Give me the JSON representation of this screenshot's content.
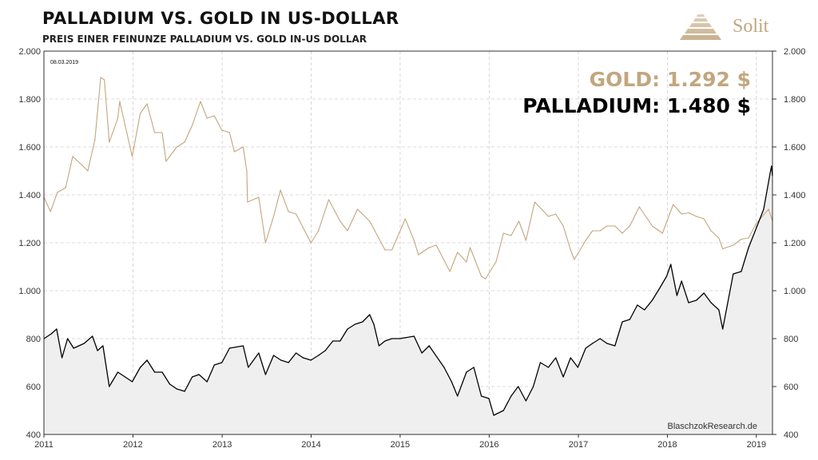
{
  "header": {
    "title": "PALLADIUM  VS.  GOLD  IN  US-DOLLAR",
    "subtitle": "PREIS EINER FEINUNZE PALLADIUM VS. GOLD IN-US DOLLAR",
    "brand": "Solit"
  },
  "colors": {
    "gold": "#c2a67e",
    "palladium": "#000000",
    "palladium_fill": "#efefef",
    "grid": "#cfcfcf"
  },
  "chart_data": {
    "type": "line",
    "date_label": "08.03.2019",
    "source": "BlaschzokResearch.de",
    "value_labels": [
      "GOLD: 1.292 $",
      "PALLADIUM: 1.480 $"
    ],
    "x_tick_labels": [
      "2011",
      "2012",
      "2013",
      "2014",
      "2015",
      "2016",
      "2017",
      "2018",
      "2019"
    ],
    "y_tick_labels": [
      "400",
      "600",
      "800",
      "1.000",
      "1.200",
      "1.400",
      "1.600",
      "1.800",
      "2.000"
    ],
    "ylim": [
      400,
      2000
    ],
    "xlim": [
      "2011-01-01",
      "2019-03-08"
    ],
    "y_axis_both_sides": true,
    "grid": true,
    "series": [
      {
        "name": "GOLD",
        "color": "#c2a67e",
        "points": [
          [
            "2011-01-01",
            1390
          ],
          [
            "2011-01-28",
            1330
          ],
          [
            "2011-02-25",
            1410
          ],
          [
            "2011-03-31",
            1430
          ],
          [
            "2011-04-29",
            1560
          ],
          [
            "2011-05-31",
            1530
          ],
          [
            "2011-06-30",
            1500
          ],
          [
            "2011-07-29",
            1630
          ],
          [
            "2011-08-22",
            1890
          ],
          [
            "2011-09-06",
            1880
          ],
          [
            "2011-09-26",
            1620
          ],
          [
            "2011-10-31",
            1720
          ],
          [
            "2011-11-08",
            1790
          ],
          [
            "2011-12-29",
            1560
          ],
          [
            "2012-01-31",
            1740
          ],
          [
            "2012-02-28",
            1780
          ],
          [
            "2012-03-30",
            1660
          ],
          [
            "2012-04-30",
            1660
          ],
          [
            "2012-05-16",
            1540
          ],
          [
            "2012-06-29",
            1600
          ],
          [
            "2012-07-31",
            1620
          ],
          [
            "2012-08-31",
            1690
          ],
          [
            "2012-10-04",
            1790
          ],
          [
            "2012-10-31",
            1720
          ],
          [
            "2012-11-30",
            1730
          ],
          [
            "2012-12-31",
            1670
          ],
          [
            "2013-01-31",
            1660
          ],
          [
            "2013-02-20",
            1580
          ],
          [
            "2013-03-28",
            1600
          ],
          [
            "2013-04-12",
            1500
          ],
          [
            "2013-04-15",
            1370
          ],
          [
            "2013-05-31",
            1390
          ],
          [
            "2013-06-28",
            1200
          ],
          [
            "2013-07-31",
            1310
          ],
          [
            "2013-08-28",
            1420
          ],
          [
            "2013-09-30",
            1330
          ],
          [
            "2013-10-31",
            1320
          ],
          [
            "2013-12-31",
            1200
          ],
          [
            "2014-01-31",
            1250
          ],
          [
            "2014-03-14",
            1380
          ],
          [
            "2014-04-30",
            1290
          ],
          [
            "2014-05-30",
            1250
          ],
          [
            "2014-07-10",
            1340
          ],
          [
            "2014-08-29",
            1290
          ],
          [
            "2014-10-31",
            1170
          ],
          [
            "2014-11-28",
            1170
          ],
          [
            "2015-01-22",
            1300
          ],
          [
            "2015-02-27",
            1210
          ],
          [
            "2015-03-17",
            1150
          ],
          [
            "2015-04-30",
            1180
          ],
          [
            "2015-05-29",
            1190
          ],
          [
            "2015-07-24",
            1080
          ],
          [
            "2015-08-24",
            1160
          ],
          [
            "2015-09-30",
            1120
          ],
          [
            "2015-10-15",
            1180
          ],
          [
            "2015-11-30",
            1060
          ],
          [
            "2015-12-17",
            1050
          ],
          [
            "2016-01-29",
            1120
          ],
          [
            "2016-02-29",
            1240
          ],
          [
            "2016-03-31",
            1230
          ],
          [
            "2016-05-02",
            1290
          ],
          [
            "2016-05-31",
            1210
          ],
          [
            "2016-07-06",
            1370
          ],
          [
            "2016-08-31",
            1310
          ],
          [
            "2016-09-30",
            1320
          ],
          [
            "2016-10-31",
            1270
          ],
          [
            "2016-11-30",
            1170
          ],
          [
            "2016-12-15",
            1130
          ],
          [
            "2017-01-31",
            1210
          ],
          [
            "2017-02-28",
            1250
          ],
          [
            "2017-03-31",
            1250
          ],
          [
            "2017-04-28",
            1270
          ],
          [
            "2017-05-31",
            1270
          ],
          [
            "2017-06-30",
            1240
          ],
          [
            "2017-07-31",
            1270
          ],
          [
            "2017-09-08",
            1350
          ],
          [
            "2017-10-31",
            1270
          ],
          [
            "2017-12-12",
            1240
          ],
          [
            "2018-01-25",
            1360
          ],
          [
            "2018-02-28",
            1320
          ],
          [
            "2018-03-30",
            1325
          ],
          [
            "2018-04-30",
            1310
          ],
          [
            "2018-05-31",
            1300
          ],
          [
            "2018-06-29",
            1250
          ],
          [
            "2018-07-31",
            1220
          ],
          [
            "2018-08-16",
            1175
          ],
          [
            "2018-09-28",
            1190
          ],
          [
            "2018-10-31",
            1215
          ],
          [
            "2018-11-30",
            1220
          ],
          [
            "2018-12-31",
            1280
          ],
          [
            "2019-02-20",
            1340
          ],
          [
            "2019-03-08",
            1292
          ]
        ]
      },
      {
        "name": "PALLADIUM",
        "color": "#000000",
        "points": [
          [
            "2011-01-01",
            800
          ],
          [
            "2011-01-31",
            820
          ],
          [
            "2011-02-22",
            840
          ],
          [
            "2011-03-16",
            720
          ],
          [
            "2011-04-08",
            800
          ],
          [
            "2011-05-03",
            760
          ],
          [
            "2011-06-15",
            780
          ],
          [
            "2011-07-19",
            810
          ],
          [
            "2011-08-09",
            750
          ],
          [
            "2011-08-31",
            770
          ],
          [
            "2011-09-26",
            600
          ],
          [
            "2011-10-31",
            660
          ],
          [
            "2011-11-30",
            640
          ],
          [
            "2011-12-29",
            620
          ],
          [
            "2012-01-31",
            680
          ],
          [
            "2012-02-28",
            710
          ],
          [
            "2012-03-30",
            660
          ],
          [
            "2012-04-30",
            660
          ],
          [
            "2012-05-31",
            610
          ],
          [
            "2012-06-29",
            590
          ],
          [
            "2012-07-31",
            580
          ],
          [
            "2012-08-31",
            640
          ],
          [
            "2012-09-28",
            650
          ],
          [
            "2012-10-31",
            620
          ],
          [
            "2012-11-30",
            690
          ],
          [
            "2012-12-31",
            700
          ],
          [
            "2013-01-31",
            760
          ],
          [
            "2013-03-28",
            770
          ],
          [
            "2013-04-18",
            680
          ],
          [
            "2013-05-31",
            740
          ],
          [
            "2013-06-28",
            650
          ],
          [
            "2013-07-31",
            730
          ],
          [
            "2013-08-30",
            710
          ],
          [
            "2013-09-30",
            700
          ],
          [
            "2013-10-31",
            740
          ],
          [
            "2013-11-29",
            720
          ],
          [
            "2013-12-31",
            710
          ],
          [
            "2014-01-31",
            730
          ],
          [
            "2014-02-28",
            750
          ],
          [
            "2014-03-31",
            790
          ],
          [
            "2014-04-30",
            790
          ],
          [
            "2014-05-30",
            840
          ],
          [
            "2014-06-30",
            860
          ],
          [
            "2014-07-31",
            870
          ],
          [
            "2014-08-29",
            900
          ],
          [
            "2014-09-15",
            860
          ],
          [
            "2014-10-06",
            770
          ],
          [
            "2014-10-31",
            790
          ],
          [
            "2014-11-28",
            800
          ],
          [
            "2014-12-31",
            800
          ],
          [
            "2015-02-27",
            810
          ],
          [
            "2015-03-31",
            740
          ],
          [
            "2015-04-30",
            770
          ],
          [
            "2015-06-30",
            680
          ],
          [
            "2015-07-31",
            620
          ],
          [
            "2015-08-24",
            560
          ],
          [
            "2015-09-30",
            660
          ],
          [
            "2015-10-30",
            680
          ],
          [
            "2015-11-30",
            560
          ],
          [
            "2015-12-31",
            550
          ],
          [
            "2016-01-20",
            480
          ],
          [
            "2016-02-29",
            500
          ],
          [
            "2016-03-31",
            560
          ],
          [
            "2016-04-29",
            600
          ],
          [
            "2016-05-31",
            540
          ],
          [
            "2016-06-30",
            600
          ],
          [
            "2016-07-29",
            700
          ],
          [
            "2016-08-31",
            680
          ],
          [
            "2016-09-30",
            720
          ],
          [
            "2016-10-31",
            640
          ],
          [
            "2016-11-30",
            720
          ],
          [
            "2016-12-30",
            680
          ],
          [
            "2017-01-31",
            760
          ],
          [
            "2017-02-28",
            780
          ],
          [
            "2017-03-31",
            800
          ],
          [
            "2017-04-28",
            780
          ],
          [
            "2017-05-31",
            770
          ],
          [
            "2017-06-30",
            870
          ],
          [
            "2017-07-31",
            880
          ],
          [
            "2017-08-31",
            940
          ],
          [
            "2017-09-29",
            920
          ],
          [
            "2017-10-31",
            960
          ],
          [
            "2017-11-30",
            1010
          ],
          [
            "2017-12-29",
            1060
          ],
          [
            "2018-01-15",
            1110
          ],
          [
            "2018-02-09",
            980
          ],
          [
            "2018-02-28",
            1040
          ],
          [
            "2018-03-29",
            950
          ],
          [
            "2018-04-30",
            960
          ],
          [
            "2018-05-31",
            990
          ],
          [
            "2018-06-29",
            950
          ],
          [
            "2018-07-31",
            920
          ],
          [
            "2018-08-16",
            840
          ],
          [
            "2018-09-28",
            1070
          ],
          [
            "2018-10-31",
            1080
          ],
          [
            "2018-11-30",
            1180
          ],
          [
            "2018-12-31",
            1260
          ],
          [
            "2019-01-31",
            1340
          ],
          [
            "2019-02-28",
            1500
          ],
          [
            "2019-03-04",
            1520
          ],
          [
            "2019-03-08",
            1480
          ]
        ]
      }
    ]
  }
}
